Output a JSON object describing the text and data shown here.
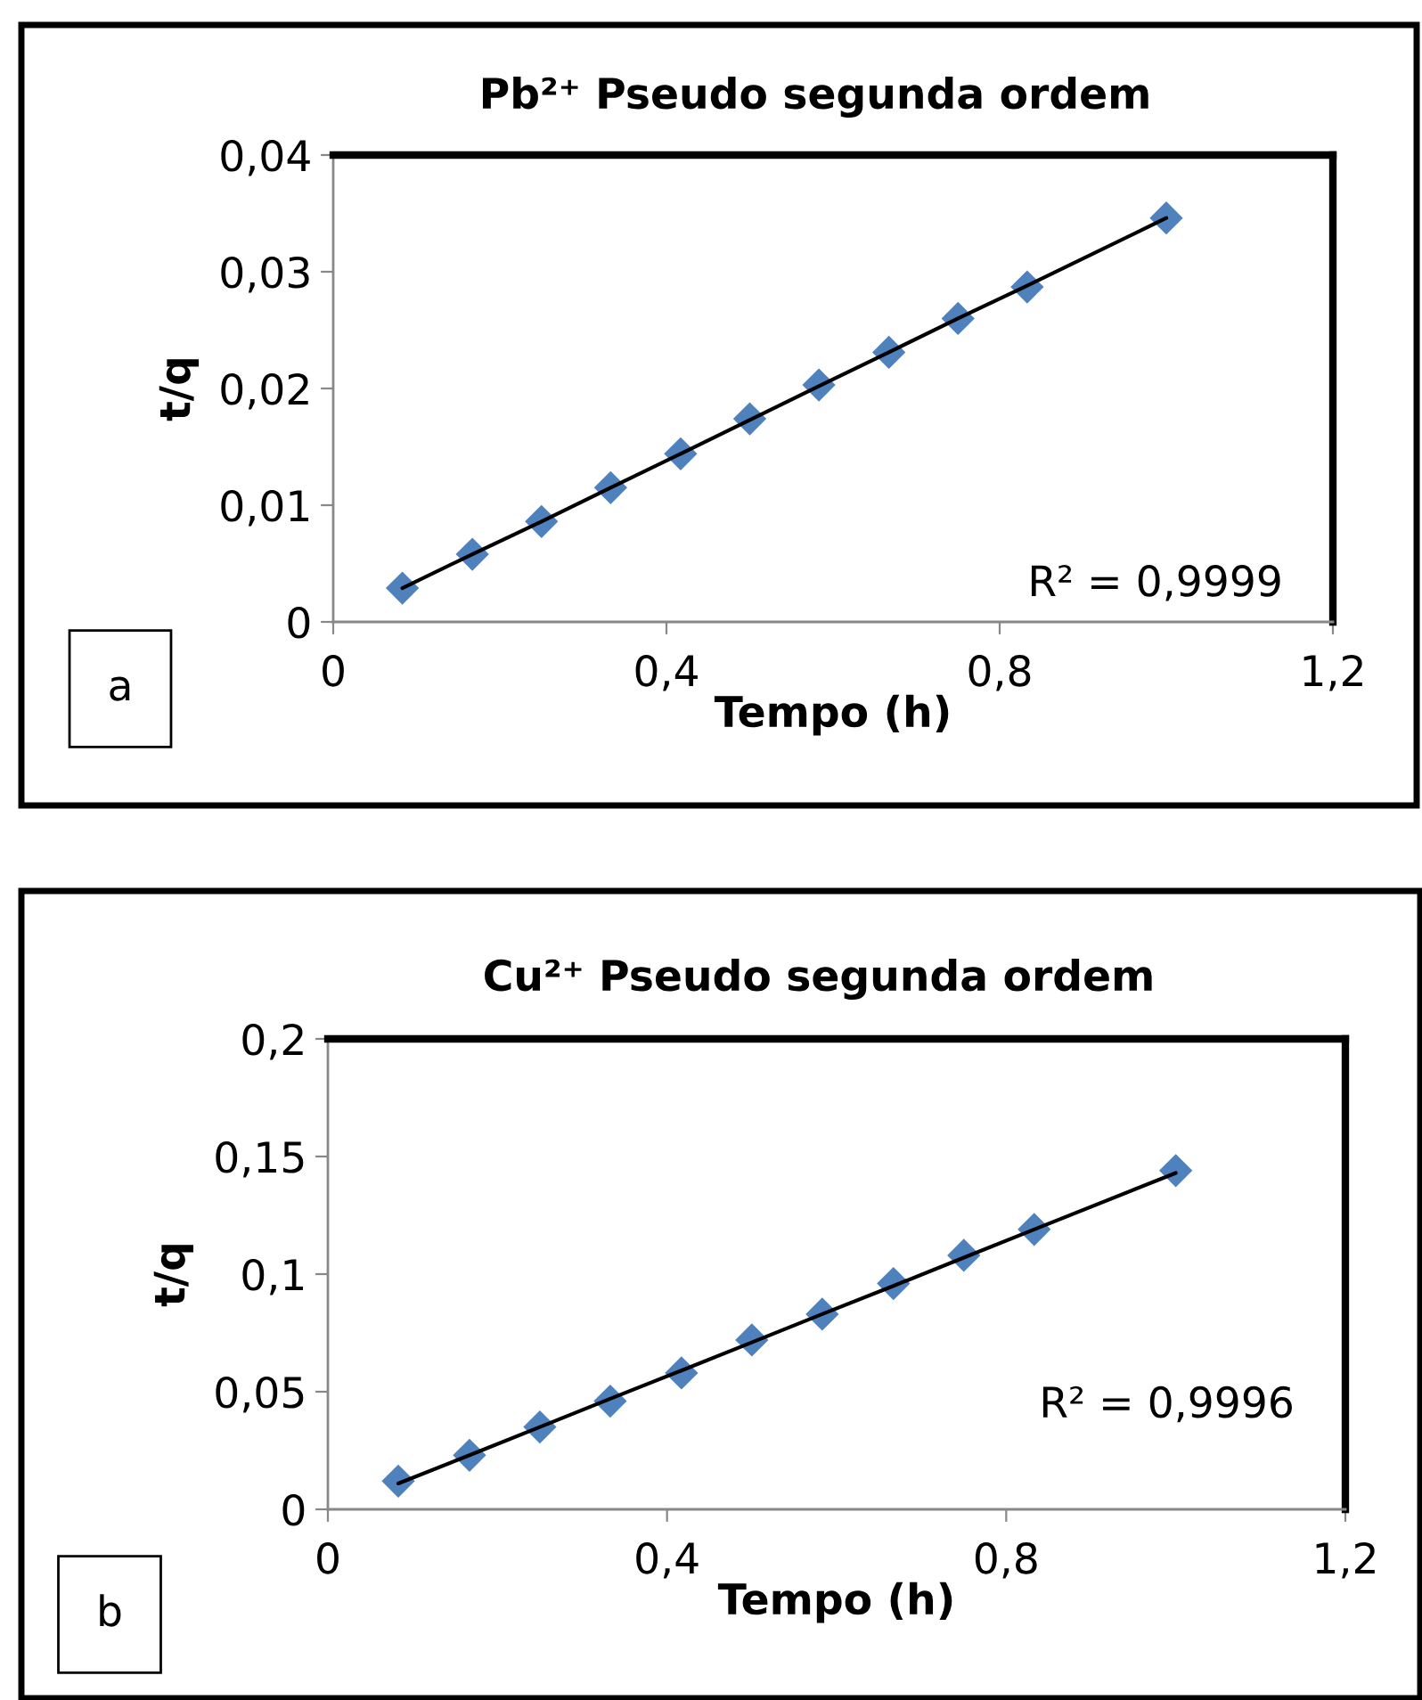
{
  "chart_data": [
    {
      "type": "scatter",
      "title": "Pb²⁺ Pseudo segunda ordem",
      "xlabel": "Tempo (h)",
      "ylabel": "t/q",
      "x": [
        0.083,
        0.167,
        0.25,
        0.333,
        0.417,
        0.5,
        0.583,
        0.667,
        0.75,
        0.833,
        1.0
      ],
      "series": [
        {
          "color": "#4f81bd",
          "marker": "diamond",
          "values": [
            0.0029,
            0.0058,
            0.0086,
            0.0115,
            0.0144,
            0.0174,
            0.0203,
            0.0231,
            0.026,
            0.0287,
            0.0346
          ]
        },
        {
          "type": "line",
          "color": "#000000",
          "marker": "none",
          "values": [
            0.0029,
            0.0058,
            0.0086,
            0.0115,
            0.0144,
            0.0173,
            0.0202,
            0.0231,
            0.026,
            0.0288,
            0.0346
          ]
        }
      ],
      "xlim": [
        0,
        1.2
      ],
      "xticks": [
        0,
        {
          "value": 0.4,
          "label": "0,4"
        },
        {
          "value": 0.8,
          "label": "0,8"
        },
        {
          "value": 1.2,
          "label": "1,2"
        }
      ],
      "ylim": [
        0,
        0.04
      ],
      "yticks": [
        0,
        {
          "value": 0.01,
          "label": "0,01"
        },
        {
          "value": 0.02,
          "label": "0,02"
        },
        {
          "value": 0.03,
          "label": "0,03"
        },
        {
          "value": 0.04,
          "label": "0,04"
        }
      ],
      "grid": false,
      "legend": false,
      "annotations": [
        "R² = 0,9999",
        "a"
      ]
    },
    {
      "type": "scatter",
      "title": "Cu²⁺ Pseudo segunda ordem",
      "xlabel": "Tempo (h)",
      "ylabel": "t/q",
      "x": [
        0.083,
        0.167,
        0.25,
        0.333,
        0.417,
        0.5,
        0.583,
        0.667,
        0.75,
        0.833,
        1.0
      ],
      "series": [
        {
          "color": "#4f81bd",
          "marker": "diamond",
          "values": [
            0.012,
            0.023,
            0.035,
            0.046,
            0.058,
            0.072,
            0.083,
            0.096,
            0.108,
            0.119,
            0.144
          ]
        },
        {
          "type": "line",
          "color": "#000000",
          "marker": "none",
          "values": [
            0.011,
            0.023,
            0.035,
            0.047,
            0.059,
            0.071,
            0.083,
            0.095,
            0.107,
            0.119,
            0.143
          ]
        }
      ],
      "xlim": [
        0,
        1.2
      ],
      "xticks": [
        0,
        {
          "value": 0.4,
          "label": "0,4"
        },
        {
          "value": 0.8,
          "label": "0,8"
        },
        {
          "value": 1.2,
          "label": "1,2"
        }
      ],
      "ylim": [
        0,
        0.2
      ],
      "yticks": [
        0,
        {
          "value": 0.05,
          "label": "0,05"
        },
        {
          "value": 0.1,
          "label": "0,1"
        },
        {
          "value": 0.15,
          "label": "0,15"
        },
        {
          "value": 0.2,
          "label": "0,2"
        }
      ],
      "grid": false,
      "legend": false,
      "annotations": [
        "R² = 0,9996",
        "b"
      ]
    }
  ]
}
